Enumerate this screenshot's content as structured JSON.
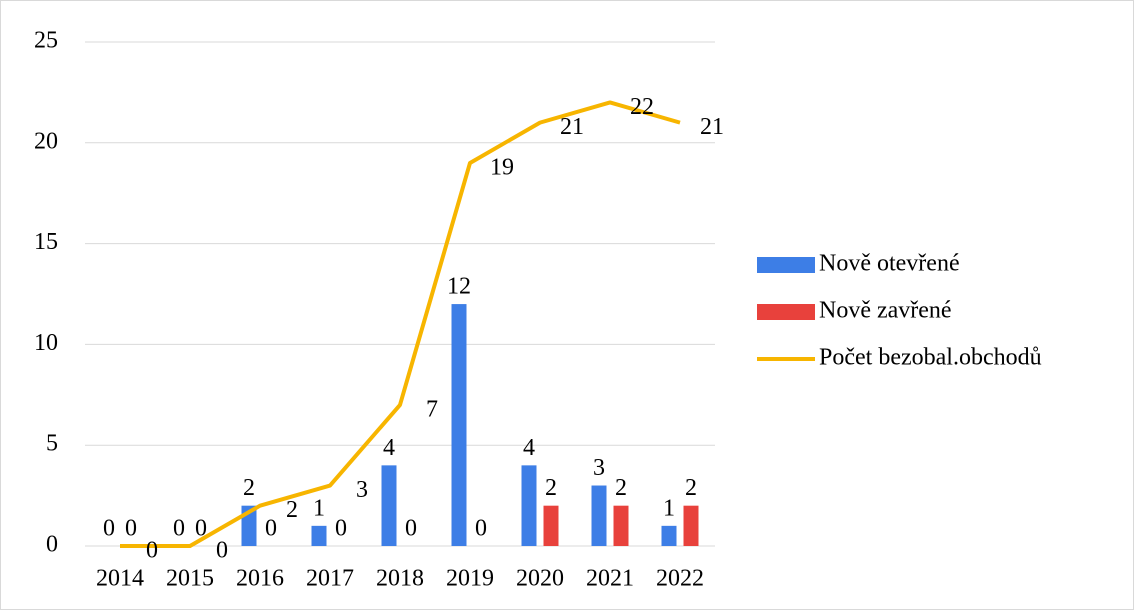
{
  "chart_data": {
    "type": "bar_line",
    "categories": [
      "2014",
      "2015",
      "2016",
      "2017",
      "2018",
      "2019",
      "2020",
      "2021",
      "2022"
    ],
    "series": [
      {
        "name": "Nově otevřené",
        "type": "bar",
        "color": "#3d7ee6",
        "values": [
          0,
          0,
          2,
          1,
          4,
          12,
          4,
          3,
          1
        ]
      },
      {
        "name": "Nově zavřené",
        "type": "bar",
        "color": "#e8413c",
        "values": [
          0,
          0,
          0,
          0,
          0,
          0,
          2,
          2,
          2
        ]
      },
      {
        "name": "Počet bezobal.obchodů",
        "type": "line",
        "color": "#f7b500",
        "values": [
          0,
          0,
          2,
          3,
          7,
          19,
          21,
          22,
          21
        ]
      }
    ],
    "ylim": [
      0,
      25
    ],
    "yticks": [
      0,
      5,
      10,
      15,
      20,
      25
    ],
    "grid": true,
    "legend": "right"
  }
}
